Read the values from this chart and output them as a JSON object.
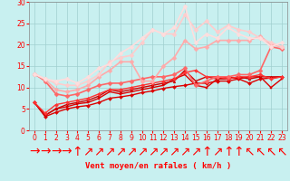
{
  "xlabel": "Vent moyen/en rafales ( km/h )",
  "bg_color": "#c8f0f0",
  "grid_color": "#a0d0d0",
  "x": [
    0,
    1,
    2,
    3,
    4,
    5,
    6,
    7,
    8,
    9,
    10,
    11,
    12,
    13,
    14,
    15,
    16,
    17,
    18,
    19,
    20,
    21,
    22,
    23
  ],
  "lines": [
    {
      "color": "#dd0000",
      "lw": 1.0,
      "marker": "D",
      "ms": 2.0,
      "y": [
        6.5,
        3.2,
        4.2,
        5.0,
        5.5,
        5.8,
        6.5,
        7.5,
        7.8,
        8.2,
        8.8,
        9.2,
        9.8,
        10.2,
        10.5,
        11.0,
        11.0,
        11.5,
        11.5,
        12.0,
        11.0,
        12.0,
        12.2,
        12.5
      ]
    },
    {
      "color": "#dd0000",
      "lw": 1.0,
      "marker": "s",
      "ms": 2.0,
      "y": [
        6.5,
        3.5,
        5.0,
        5.5,
        6.2,
        6.5,
        7.5,
        9.0,
        8.5,
        9.0,
        9.5,
        10.0,
        10.5,
        12.0,
        13.0,
        10.5,
        10.0,
        12.0,
        12.5,
        12.0,
        12.5,
        12.5,
        10.0,
        12.0
      ]
    },
    {
      "color": "#cc0000",
      "lw": 1.0,
      "marker": "^",
      "ms": 2.0,
      "y": [
        6.5,
        3.5,
        5.0,
        6.0,
        6.5,
        7.0,
        8.0,
        9.5,
        9.0,
        9.5,
        10.0,
        10.5,
        11.0,
        11.5,
        14.0,
        11.5,
        12.5,
        12.0,
        12.0,
        12.5,
        12.0,
        12.5,
        12.5,
        12.5
      ]
    },
    {
      "color": "#ff3333",
      "lw": 1.0,
      "marker": "D",
      "ms": 2.0,
      "y": [
        6.5,
        4.0,
        6.0,
        6.5,
        7.0,
        7.5,
        8.5,
        9.5,
        9.5,
        10.0,
        10.5,
        11.0,
        11.5,
        12.0,
        13.5,
        14.0,
        12.5,
        12.5,
        12.0,
        12.5,
        12.5,
        13.0,
        12.0,
        12.5
      ]
    },
    {
      "color": "#ff6666",
      "lw": 1.2,
      "marker": "D",
      "ms": 2.5,
      "y": [
        13.2,
        11.5,
        8.5,
        8.0,
        8.5,
        9.5,
        10.5,
        11.0,
        11.0,
        11.5,
        12.0,
        12.5,
        12.5,
        13.0,
        14.5,
        10.5,
        11.5,
        12.5,
        12.5,
        13.0,
        13.0,
        14.0,
        19.5,
        19.0
      ]
    },
    {
      "color": "#ffaaaa",
      "lw": 1.2,
      "marker": "D",
      "ms": 2.5,
      "y": [
        13.2,
        11.8,
        9.5,
        9.0,
        9.5,
        10.5,
        12.5,
        14.0,
        16.0,
        16.0,
        11.5,
        11.5,
        15.0,
        17.0,
        21.0,
        19.0,
        19.5,
        21.0,
        21.0,
        21.0,
        21.0,
        22.0,
        20.0,
        19.5
      ]
    },
    {
      "color": "#ffcccc",
      "lw": 1.2,
      "marker": "D",
      "ms": 2.5,
      "y": [
        13.2,
        12.0,
        11.0,
        10.5,
        10.5,
        11.5,
        13.0,
        16.0,
        17.0,
        17.5,
        20.5,
        23.5,
        22.5,
        22.5,
        27.0,
        23.5,
        25.5,
        23.0,
        24.5,
        23.5,
        23.0,
        21.5,
        20.5,
        19.5
      ]
    },
    {
      "color": "#ffdddd",
      "lw": 1.2,
      "marker": "D",
      "ms": 2.5,
      "y": [
        13.2,
        12.0,
        11.5,
        12.0,
        11.0,
        12.5,
        14.5,
        15.5,
        18.0,
        19.5,
        21.5,
        23.5,
        22.5,
        24.0,
        29.0,
        20.5,
        22.5,
        21.5,
        24.0,
        22.5,
        21.5,
        21.5,
        19.5,
        20.5
      ]
    }
  ],
  "wind_symbols": [
    "→",
    "→",
    "→",
    "→",
    "↑",
    "↗",
    "↗",
    "↗",
    "↗",
    "↗",
    "↗",
    "↗",
    "↗",
    "↗",
    "↗",
    "↗",
    "↑",
    "↗",
    "↑",
    "↑",
    "↖",
    "↖",
    "↖",
    "↖"
  ],
  "ylim": [
    0,
    30
  ],
  "yticks": [
    0,
    5,
    10,
    15,
    20,
    25,
    30
  ],
  "xlim": [
    -0.5,
    23.5
  ],
  "xticks": [
    0,
    1,
    2,
    3,
    4,
    5,
    6,
    7,
    8,
    9,
    10,
    11,
    12,
    13,
    14,
    15,
    16,
    17,
    18,
    19,
    20,
    21,
    22,
    23
  ],
  "tick_fontsize": 5.5,
  "xlabel_fontsize": 6.5
}
